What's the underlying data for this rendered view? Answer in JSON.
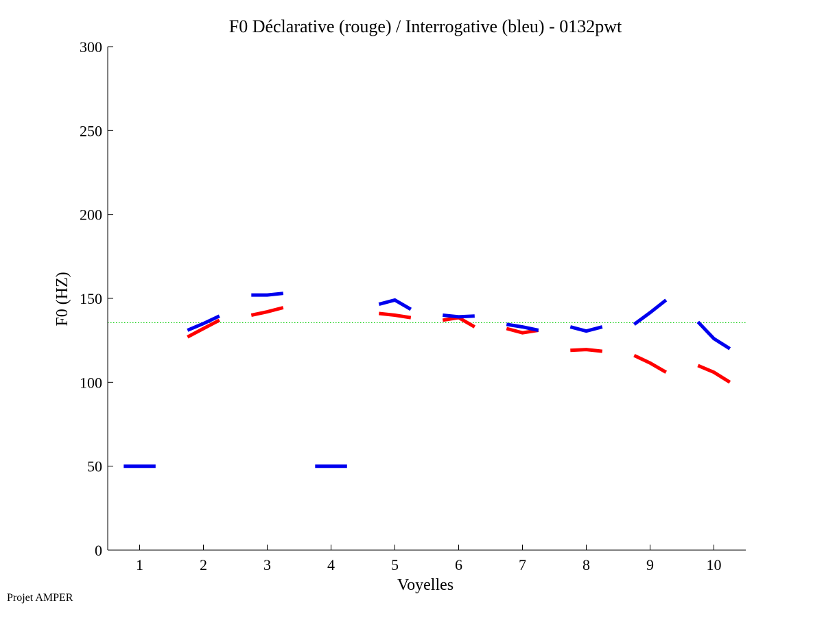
{
  "chart_data": {
    "type": "line",
    "title": "F0 Déclarative (rouge) / Interrogative (bleu) - 0132pwt",
    "xlabel": "Voyelles",
    "ylabel": "F0 (HZ)",
    "xlim": [
      0.5,
      10.5
    ],
    "ylim": [
      0,
      300
    ],
    "xticks": [
      "1",
      "2",
      "3",
      "4",
      "5",
      "6",
      "7",
      "8",
      "9",
      "10"
    ],
    "yticks": [
      "0",
      "50",
      "100",
      "150",
      "200",
      "250",
      "300"
    ],
    "reference_line": {
      "value": 135.5,
      "color": "#00cc00",
      "style": "dotted"
    },
    "series": [
      {
        "name": "Déclarative",
        "color": "#ff0000",
        "segments": [
          {
            "vowel": 2,
            "values": [
              127,
              132,
              137
            ]
          },
          {
            "vowel": 3,
            "values": [
              140,
              142,
              144.5
            ]
          },
          {
            "vowel": 5,
            "values": [
              141,
              140,
              138.5
            ]
          },
          {
            "vowel": 6,
            "values": [
              137,
              138.5,
              133
            ]
          },
          {
            "vowel": 7,
            "values": [
              132,
              129.5,
              131
            ]
          },
          {
            "vowel": 8,
            "values": [
              119,
              119.5,
              118.5
            ]
          },
          {
            "vowel": 9,
            "values": [
              116,
              111.5,
              106
            ]
          },
          {
            "vowel": 10,
            "values": [
              110,
              106,
              100
            ]
          }
        ]
      },
      {
        "name": "Interrogative",
        "color": "#0000ee",
        "segments": [
          {
            "vowel": 1,
            "values": [
              50,
              50,
              50
            ]
          },
          {
            "vowel": 2,
            "values": [
              131,
              135,
              139.5
            ]
          },
          {
            "vowel": 3,
            "values": [
              152,
              152,
              153
            ]
          },
          {
            "vowel": 4,
            "values": [
              50,
              50,
              50
            ]
          },
          {
            "vowel": 5,
            "values": [
              146.5,
              149,
              143.5
            ]
          },
          {
            "vowel": 6,
            "values": [
              140,
              139,
              139.5
            ]
          },
          {
            "vowel": 7,
            "values": [
              134.5,
              133,
              131
            ]
          },
          {
            "vowel": 8,
            "values": [
              133,
              130.5,
              133
            ]
          },
          {
            "vowel": 9,
            "values": [
              134.5,
              141.5,
              149
            ]
          },
          {
            "vowel": 10,
            "values": [
              136,
              126,
              120
            ]
          }
        ]
      }
    ]
  },
  "footer": {
    "text": "Projet AMPER"
  }
}
